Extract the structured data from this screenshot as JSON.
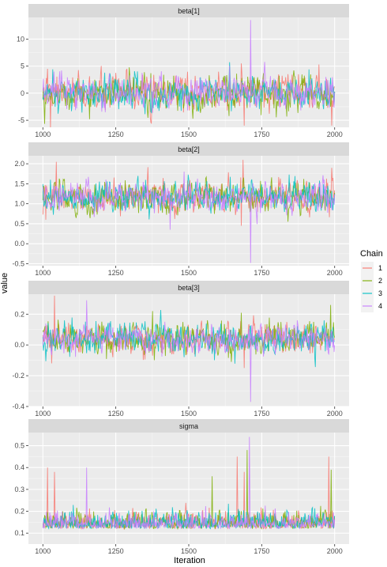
{
  "chart_data": {
    "type": "line",
    "xlabel": "Iteration",
    "ylabel": "value",
    "xlim": [
      1000,
      2000
    ],
    "x_ticks": [
      "1000",
      "1250",
      "1500",
      "1750",
      "2000"
    ],
    "legend": {
      "title": "Chain",
      "placement": "right",
      "entries": [
        "1",
        "2",
        "3",
        "4"
      ]
    },
    "series_colors": {
      "1": "#F8766D",
      "2": "#7CAE00",
      "3": "#00BFC4",
      "4": "#C77CFF"
    },
    "grid": true,
    "panels": [
      {
        "strip": "beta[1]",
        "ylim": [
          -6.3,
          14
        ],
        "y_ticks": [
          "-5",
          "0",
          "5",
          "10"
        ],
        "center": 0.0,
        "spread": 1.6,
        "spikes": [
          {
            "chain": "1",
            "x": 1015,
            "y": 4.5
          },
          {
            "chain": "1",
            "x": 1025,
            "y": -6.5
          },
          {
            "chain": "2",
            "x": 1160,
            "y": -4.8
          },
          {
            "chain": "1",
            "x": 1680,
            "y": 5.5
          },
          {
            "chain": "1",
            "x": 1690,
            "y": -6.0
          },
          {
            "chain": "4",
            "x": 1712,
            "y": 13.5
          },
          {
            "chain": "1",
            "x": 1990,
            "y": -6.0
          },
          {
            "chain": "4",
            "x": 1970,
            "y": 3.0
          }
        ]
      },
      {
        "strip": "beta[2]",
        "ylim": [
          -0.55,
          2.2
        ],
        "y_ticks": [
          "-0.5",
          "0.0",
          "0.5",
          "1.0",
          "1.5",
          "2.0"
        ],
        "center": 1.17,
        "spread": 0.2,
        "spikes": [
          {
            "chain": "1",
            "x": 1045,
            "y": 2.05
          },
          {
            "chain": "1",
            "x": 1010,
            "y": 0.6
          },
          {
            "chain": "4",
            "x": 1435,
            "y": 0.35
          },
          {
            "chain": "1",
            "x": 1685,
            "y": 2.1
          },
          {
            "chain": "1",
            "x": 1680,
            "y": 0.45
          },
          {
            "chain": "4",
            "x": 1712,
            "y": -0.48
          },
          {
            "chain": "1",
            "x": 1990,
            "y": 1.9
          }
        ]
      },
      {
        "strip": "beta[3]",
        "ylim": [
          -0.4,
          0.33
        ],
        "y_ticks": [
          "-0.4",
          "-0.2",
          "0.0",
          "0.2"
        ],
        "center": 0.04,
        "spread": 0.05,
        "spikes": [
          {
            "chain": "1",
            "x": 1040,
            "y": 0.32
          },
          {
            "chain": "1",
            "x": 1030,
            "y": -0.12
          },
          {
            "chain": "4",
            "x": 1150,
            "y": 0.29
          },
          {
            "chain": "2",
            "x": 1375,
            "y": 0.22
          },
          {
            "chain": "1",
            "x": 1690,
            "y": -0.15
          },
          {
            "chain": "4",
            "x": 1712,
            "y": -0.37
          },
          {
            "chain": "2",
            "x": 1985,
            "y": 0.26
          }
        ]
      },
      {
        "strip": "sigma",
        "ylim": [
          0.05,
          0.56
        ],
        "y_ticks": [
          "0.1",
          "0.2",
          "0.3",
          "0.4",
          "0.5"
        ],
        "center": 0.13,
        "spread": 0.035,
        "spikes": [
          {
            "chain": "1",
            "x": 1015,
            "y": 0.4
          },
          {
            "chain": "1",
            "x": 1040,
            "y": 0.38
          },
          {
            "chain": "4",
            "x": 1150,
            "y": 0.4
          },
          {
            "chain": "2",
            "x": 1580,
            "y": 0.36
          },
          {
            "chain": "1",
            "x": 1665,
            "y": 0.45
          },
          {
            "chain": "1",
            "x": 1690,
            "y": 0.38
          },
          {
            "chain": "2",
            "x": 1700,
            "y": 0.48
          },
          {
            "chain": "4",
            "x": 1708,
            "y": 0.54
          },
          {
            "chain": "1",
            "x": 1980,
            "y": 0.45
          },
          {
            "chain": "2",
            "x": 1988,
            "y": 0.39
          }
        ]
      }
    ]
  }
}
